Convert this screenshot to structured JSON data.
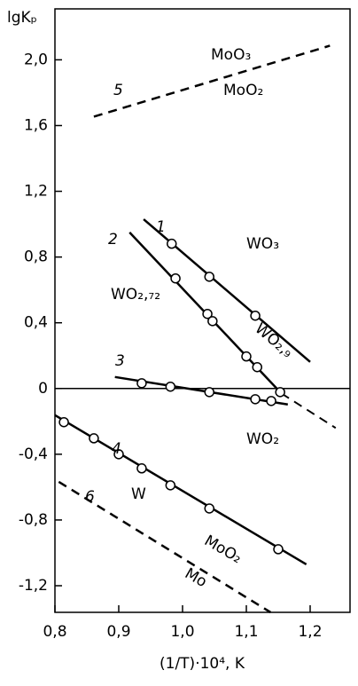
{
  "chart_data": {
    "type": "line",
    "x_label": "(1/T)·10⁴, K",
    "y_label": "lgKₚ",
    "xlim": [
      0.8,
      1.2625
    ],
    "ylim": [
      -1.362,
      2.31
    ],
    "xticks": [
      {
        "value": 0.8,
        "label": "0,8"
      },
      {
        "value": 0.9,
        "label": "0,9"
      },
      {
        "value": 1.0,
        "label": "1,0"
      },
      {
        "value": 1.1,
        "label": "1,1"
      },
      {
        "value": 1.2,
        "label": "1,2"
      }
    ],
    "yticks": [
      {
        "value": 2.0,
        "label": "2,0"
      },
      {
        "value": 1.6,
        "label": "1,6"
      },
      {
        "value": 1.2,
        "label": "1,2"
      },
      {
        "value": 0.8,
        "label": "0,8"
      },
      {
        "value": 0.4,
        "label": "0,4"
      },
      0,
      {
        "value": -0.4,
        "label": "-0,4"
      },
      {
        "value": -0.8,
        "label": "-0,8"
      },
      {
        "value": -1.2,
        "label": "-1,2"
      }
    ],
    "zero_line": true,
    "series": [
      {
        "name": "1",
        "dashed": false,
        "line_x": [
          0.939,
          1.2
        ],
        "line_y": [
          1.03,
          0.162
        ],
        "point_x": [
          0.983,
          1.042,
          1.114
        ],
        "point_y": [
          0.881,
          0.68,
          0.443
        ]
      },
      {
        "name": "2",
        "dashed": false,
        "line_x": [
          0.917,
          1.155
        ],
        "line_y": [
          0.95,
          -0.03
        ],
        "extension_x": [
          1.155,
          1.24
        ],
        "extension_y": [
          -0.03,
          -0.24
        ],
        "point_x": [
          0.989,
          1.039,
          1.047,
          1.1,
          1.117,
          1.153
        ],
        "point_y": [
          0.67,
          0.454,
          0.41,
          0.195,
          0.13,
          -0.022
        ]
      },
      {
        "name": "3",
        "dashed": false,
        "line_x": [
          0.894,
          1.165
        ],
        "line_y": [
          0.07,
          -0.097
        ],
        "point_x": [
          0.936,
          0.981,
          1.042,
          1.114,
          1.139
        ],
        "point_y": [
          0.032,
          0.011,
          -0.022,
          -0.065,
          -0.076
        ]
      },
      {
        "name": "4",
        "dashed": false,
        "line_x": [
          0.8,
          1.194
        ],
        "line_y": [
          -0.162,
          -1.07
        ],
        "point_x": [
          0.814,
          0.861,
          0.9,
          0.936,
          0.981,
          1.042,
          1.15
        ],
        "point_y": [
          -0.205,
          -0.303,
          -0.4,
          -0.486,
          -0.589,
          -0.73,
          -0.978
        ]
      },
      {
        "name": "5",
        "dashed": true,
        "line_x": [
          0.861,
          1.231
        ],
        "line_y": [
          1.654,
          2.086
        ],
        "point_x": [],
        "point_y": []
      },
      {
        "name": "6",
        "dashed": true,
        "line_x": [
          0.806,
          1.138
        ],
        "line_y": [
          -0.568,
          -1.362
        ],
        "point_x": [],
        "point_y": []
      }
    ],
    "annotations": [
      "MoO₃",
      "MoO₂",
      "WO₃",
      "WO₂,₇₂",
      "WO₂,₉",
      "WO₂",
      "W",
      "MoO₂",
      "Mo"
    ]
  }
}
